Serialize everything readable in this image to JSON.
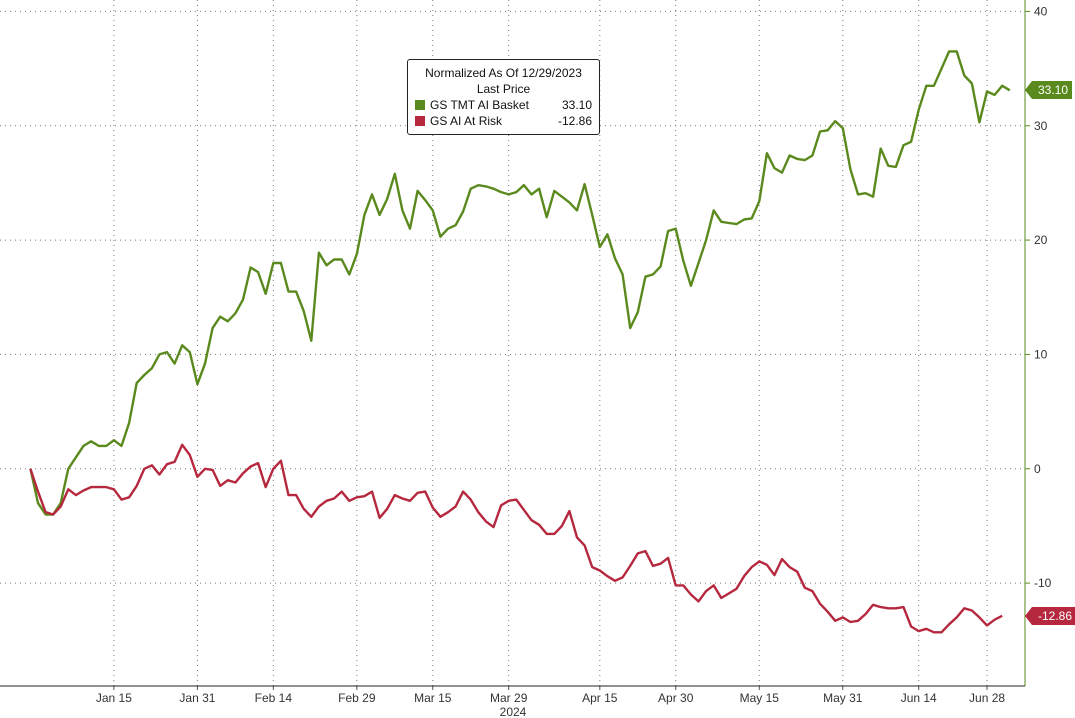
{
  "chart_data": {
    "type": "line",
    "legend": {
      "title": "Normalized As Of 12/29/2023",
      "subtitle": "Last Price",
      "placement": "top-center"
    },
    "x_tick_labels": [
      "Jan 15",
      "Jan 31",
      "Feb 14",
      "Feb 29",
      "Mar 15",
      "Mar 29",
      "Apr 15",
      "Apr 30",
      "May 15",
      "May 31",
      "Jun 14",
      "Jun 28"
    ],
    "x_tick_positions": [
      11,
      22,
      32,
      43,
      53,
      63,
      75,
      85,
      96,
      107,
      117,
      126
    ],
    "x_year_label": "2024",
    "x_range": [
      -4,
      131
    ],
    "y_ticks": [
      40,
      30,
      20,
      10,
      0,
      -10
    ],
    "y_tick_labels": [
      "40",
      "30",
      "20",
      "10",
      "0",
      "-10"
    ],
    "y_range": [
      -19,
      41
    ],
    "grid": true,
    "series": [
      {
        "name": "GS TMT AI Basket",
        "last_value": "33.10",
        "color": "#5a8a1e",
        "values": [
          0,
          -3,
          -4,
          -4,
          -3,
          0,
          1,
          2,
          2.4,
          2,
          2,
          2.5,
          2,
          4,
          7.5,
          8.2,
          8.8,
          10,
          10.2,
          9.2,
          10.8,
          10.2,
          7.4,
          9.2,
          12.3,
          13.3,
          12.9,
          13.6,
          14.8,
          17.6,
          17.2,
          15.3,
          18,
          18,
          15.5,
          15.5,
          13.8,
          11.2,
          18.9,
          17.8,
          18.3,
          18.3,
          17,
          18.8,
          22.2,
          24,
          22.2,
          23.6,
          25.8,
          22.6,
          21,
          24.3,
          23.5,
          22.6,
          20.3,
          21,
          21.3,
          22.5,
          24.5,
          24.8,
          24.7,
          24.5,
          24.2,
          24,
          24.2,
          24.8,
          24,
          24.5,
          22,
          24.3,
          23.8,
          23.3,
          22.6,
          24.9,
          22.2,
          19.4,
          20.5,
          18.4,
          17,
          12.3,
          13.7,
          16.8,
          17,
          17.7,
          20.8,
          21,
          18.2,
          16,
          18,
          20,
          22.6,
          21.6,
          21.5,
          21.4,
          21.8,
          21.9,
          23.4,
          27.6,
          26.3,
          25.9,
          27.4,
          27.1,
          27,
          27.4,
          29.5,
          29.6,
          30.4,
          29.8,
          26.2,
          24,
          24.1,
          23.8,
          28,
          26.5,
          26.4,
          28.3,
          28.6,
          31.4,
          33.5,
          33.5,
          35,
          36.5,
          36.5,
          34.4,
          33.7,
          30.3,
          33,
          32.7,
          33.5,
          33.1
        ],
        "label_position": "right"
      },
      {
        "name": "GS AI At Risk",
        "last_value": "-12.86",
        "color": "#b5283e",
        "values": [
          0,
          -2,
          -3.8,
          -4,
          -3.3,
          -1.8,
          -2.3,
          -1.9,
          -1.6,
          -1.6,
          -1.6,
          -1.8,
          -2.7,
          -2.5,
          -1.5,
          0,
          0.3,
          -0.5,
          0.4,
          0.6,
          2.1,
          1.2,
          -0.7,
          0,
          -0.1,
          -1.5,
          -1,
          -1.2,
          -0.4,
          0.2,
          0.5,
          -1.6,
          0,
          0.7,
          -2.3,
          -2.3,
          -3.5,
          -4.2,
          -3.3,
          -2.8,
          -2.6,
          -2,
          -2.8,
          -2.5,
          -2.4,
          -2,
          -4.3,
          -3.5,
          -2.3,
          -2.6,
          -2.8,
          -2.1,
          -2,
          -3.4,
          -4.2,
          -3.8,
          -3.3,
          -2,
          -2.7,
          -3.8,
          -4.6,
          -5.1,
          -3.2,
          -2.8,
          -2.7,
          -3.6,
          -4.5,
          -4.9,
          -5.7,
          -5.7,
          -5,
          -3.7,
          -6,
          -6.7,
          -8.6,
          -8.9,
          -9.4,
          -9.8,
          -9.5,
          -8.5,
          -7.4,
          -7.2,
          -8.5,
          -8.3,
          -7.8,
          -10.2,
          -10.2,
          -11,
          -11.6,
          -10.7,
          -10.2,
          -11.3,
          -10.9,
          -10.5,
          -9.4,
          -8.6,
          -8.1,
          -8.4,
          -9.3,
          -7.9,
          -8.6,
          -9,
          -10.4,
          -10.7,
          -11.8,
          -12.5,
          -13.3,
          -13,
          -13.4,
          -13.3,
          -12.7,
          -11.9,
          -12.1,
          -12.2,
          -12.2,
          -12.1,
          -13.8,
          -14.2,
          -14,
          -14.3,
          -14.3,
          -13.6,
          -13,
          -12.2,
          -12.4,
          -13,
          -13.7,
          -13.2,
          -12.86
        ],
        "label_position": "right"
      }
    ]
  }
}
